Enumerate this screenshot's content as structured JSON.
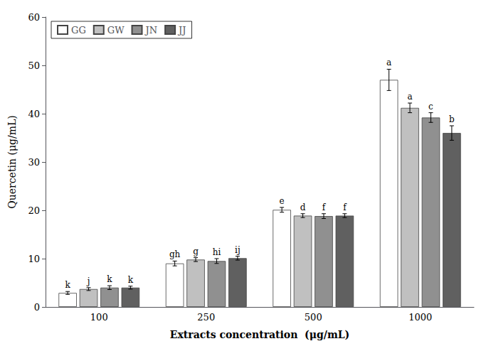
{
  "chart_data": {
    "type": "bar",
    "xlabel": "Extracts concentration  (μg/mL)",
    "ylabel": "Quercetin (μg/mL)",
    "categories": [
      "100",
      "250",
      "500",
      "1000"
    ],
    "series": [
      {
        "name": "GG",
        "color": "#ffffff",
        "values": [
          2.9,
          9.0,
          20.1,
          47.0
        ],
        "errors": [
          0.3,
          0.5,
          0.5,
          2.2
        ],
        "annotations": [
          "k",
          "gh",
          "e",
          "a"
        ]
      },
      {
        "name": "GW",
        "color": "#c0c0c0",
        "values": [
          3.7,
          9.8,
          18.9,
          41.2
        ],
        "errors": [
          0.3,
          0.4,
          0.4,
          1.0
        ],
        "annotations": [
          "j",
          "g",
          "d",
          "a"
        ]
      },
      {
        "name": "JN",
        "color": "#909090",
        "values": [
          4.0,
          9.5,
          18.8,
          39.2
        ],
        "errors": [
          0.4,
          0.5,
          0.5,
          1.0
        ],
        "annotations": [
          "k",
          "hi",
          "f",
          "c"
        ]
      },
      {
        "name": "JJ",
        "color": "#606060",
        "values": [
          4.0,
          10.1,
          18.9,
          36.0
        ],
        "errors": [
          0.3,
          0.4,
          0.4,
          1.5
        ],
        "annotations": [
          "k",
          "ij",
          "f",
          "b"
        ]
      }
    ],
    "ylim": [
      0,
      60
    ],
    "yticks": [
      0,
      10,
      20,
      30,
      40,
      50,
      60
    ],
    "grid": false,
    "legend": "upper left"
  }
}
